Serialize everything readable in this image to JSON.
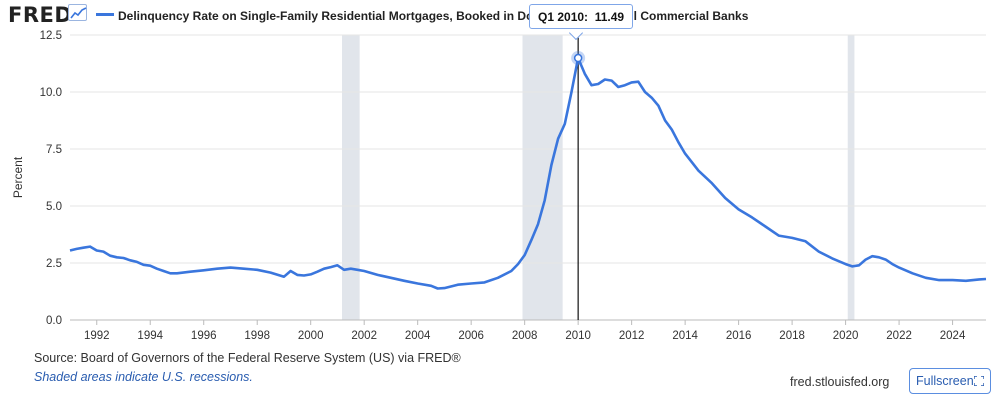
{
  "header": {
    "logo_text": "FRED",
    "logo_icon": "line-chart-icon",
    "legend_text": "Delinquency Rate on Single-Family Residential Mortgages, Booked in Domestic Offices, All Commercial Banks",
    "series_color": "#3a76dd"
  },
  "tooltip": {
    "period": "Q1 2010:",
    "value": "11.49",
    "trail": "nks"
  },
  "chart_data": {
    "type": "line",
    "title": "",
    "ylabel": "Percent",
    "xlabel": "",
    "ylim": [
      0,
      12.5
    ],
    "xlim": [
      1991.0,
      2025.25
    ],
    "y_ticks": [
      "0.0",
      "2.5",
      "5.0",
      "7.5",
      "10.0",
      "12.5"
    ],
    "x_ticks": [
      "1992",
      "1994",
      "1996",
      "1998",
      "2000",
      "2002",
      "2004",
      "2006",
      "2008",
      "2010",
      "2012",
      "2014",
      "2016",
      "2018",
      "2020",
      "2022",
      "2024"
    ],
    "grid": "horizontal",
    "recessions": [
      [
        2001.17,
        2001.83
      ],
      [
        2007.92,
        2009.42
      ],
      [
        2020.08,
        2020.33
      ]
    ],
    "highlight": {
      "x": 2010.0,
      "y": 11.49,
      "label": "Q1 2010"
    },
    "series": [
      {
        "name": "Delinquency Rate on Single-Family Residential Mortgages, Booked in Domestic Offices, All Commercial Banks",
        "x": [
          1991.0,
          1991.25,
          1991.5,
          1991.75,
          1992.0,
          1992.25,
          1992.5,
          1992.75,
          1993.0,
          1993.25,
          1993.5,
          1993.75,
          1994.0,
          1994.25,
          1994.5,
          1994.75,
          1995.0,
          1995.5,
          1996.0,
          1996.5,
          1997.0,
          1997.5,
          1998.0,
          1998.5,
          1999.0,
          1999.25,
          1999.5,
          1999.75,
          2000.0,
          2000.25,
          2000.5,
          2000.75,
          2001.0,
          2001.25,
          2001.5,
          2001.75,
          2002.0,
          2002.5,
          2003.0,
          2003.5,
          2004.0,
          2004.5,
          2004.75,
          2005.0,
          2005.5,
          2006.0,
          2006.5,
          2007.0,
          2007.5,
          2007.75,
          2008.0,
          2008.25,
          2008.5,
          2008.75,
          2009.0,
          2009.25,
          2009.5,
          2009.75,
          2010.0,
          2010.25,
          2010.5,
          2010.75,
          2011.0,
          2011.25,
          2011.5,
          2011.75,
          2012.0,
          2012.25,
          2012.5,
          2012.75,
          2013.0,
          2013.25,
          2013.5,
          2013.75,
          2014.0,
          2014.5,
          2015.0,
          2015.5,
          2016.0,
          2016.5,
          2017.0,
          2017.5,
          2018.0,
          2018.5,
          2019.0,
          2019.5,
          2020.0,
          2020.25,
          2020.5,
          2020.75,
          2021.0,
          2021.25,
          2021.5,
          2021.75,
          2022.0,
          2022.5,
          2023.0,
          2023.5,
          2024.0,
          2024.5,
          2025.0,
          2025.25
        ],
        "values": [
          3.05,
          3.12,
          3.17,
          3.22,
          3.05,
          3.0,
          2.82,
          2.75,
          2.72,
          2.62,
          2.55,
          2.42,
          2.38,
          2.25,
          2.15,
          2.05,
          2.05,
          2.12,
          2.18,
          2.25,
          2.3,
          2.25,
          2.2,
          2.08,
          1.9,
          2.15,
          1.98,
          1.95,
          2.0,
          2.12,
          2.25,
          2.32,
          2.4,
          2.2,
          2.25,
          2.2,
          2.15,
          1.98,
          1.85,
          1.72,
          1.6,
          1.5,
          1.38,
          1.4,
          1.55,
          1.6,
          1.65,
          1.85,
          2.15,
          2.45,
          2.85,
          3.5,
          4.2,
          5.25,
          6.8,
          7.95,
          8.6,
          10.0,
          11.49,
          10.8,
          10.3,
          10.35,
          10.55,
          10.5,
          10.22,
          10.3,
          10.42,
          10.45,
          10.0,
          9.75,
          9.4,
          8.75,
          8.35,
          7.8,
          7.3,
          6.55,
          6.0,
          5.35,
          4.85,
          4.5,
          4.1,
          3.7,
          3.6,
          3.45,
          3.0,
          2.7,
          2.45,
          2.35,
          2.4,
          2.65,
          2.8,
          2.75,
          2.65,
          2.45,
          2.3,
          2.05,
          1.85,
          1.75,
          1.75,
          1.72,
          1.78,
          1.8
        ]
      }
    ]
  },
  "footer": {
    "source_text": "Source: Board of Governors of the Federal Reserve System (US) via FRED®",
    "recession_note": "Shaded areas indicate U.S. recessions.",
    "site_text": "fred.stlouisfed.org",
    "fullscreen_label": "Fullscreen",
    "fullscreen_icon": "expand-icon"
  }
}
